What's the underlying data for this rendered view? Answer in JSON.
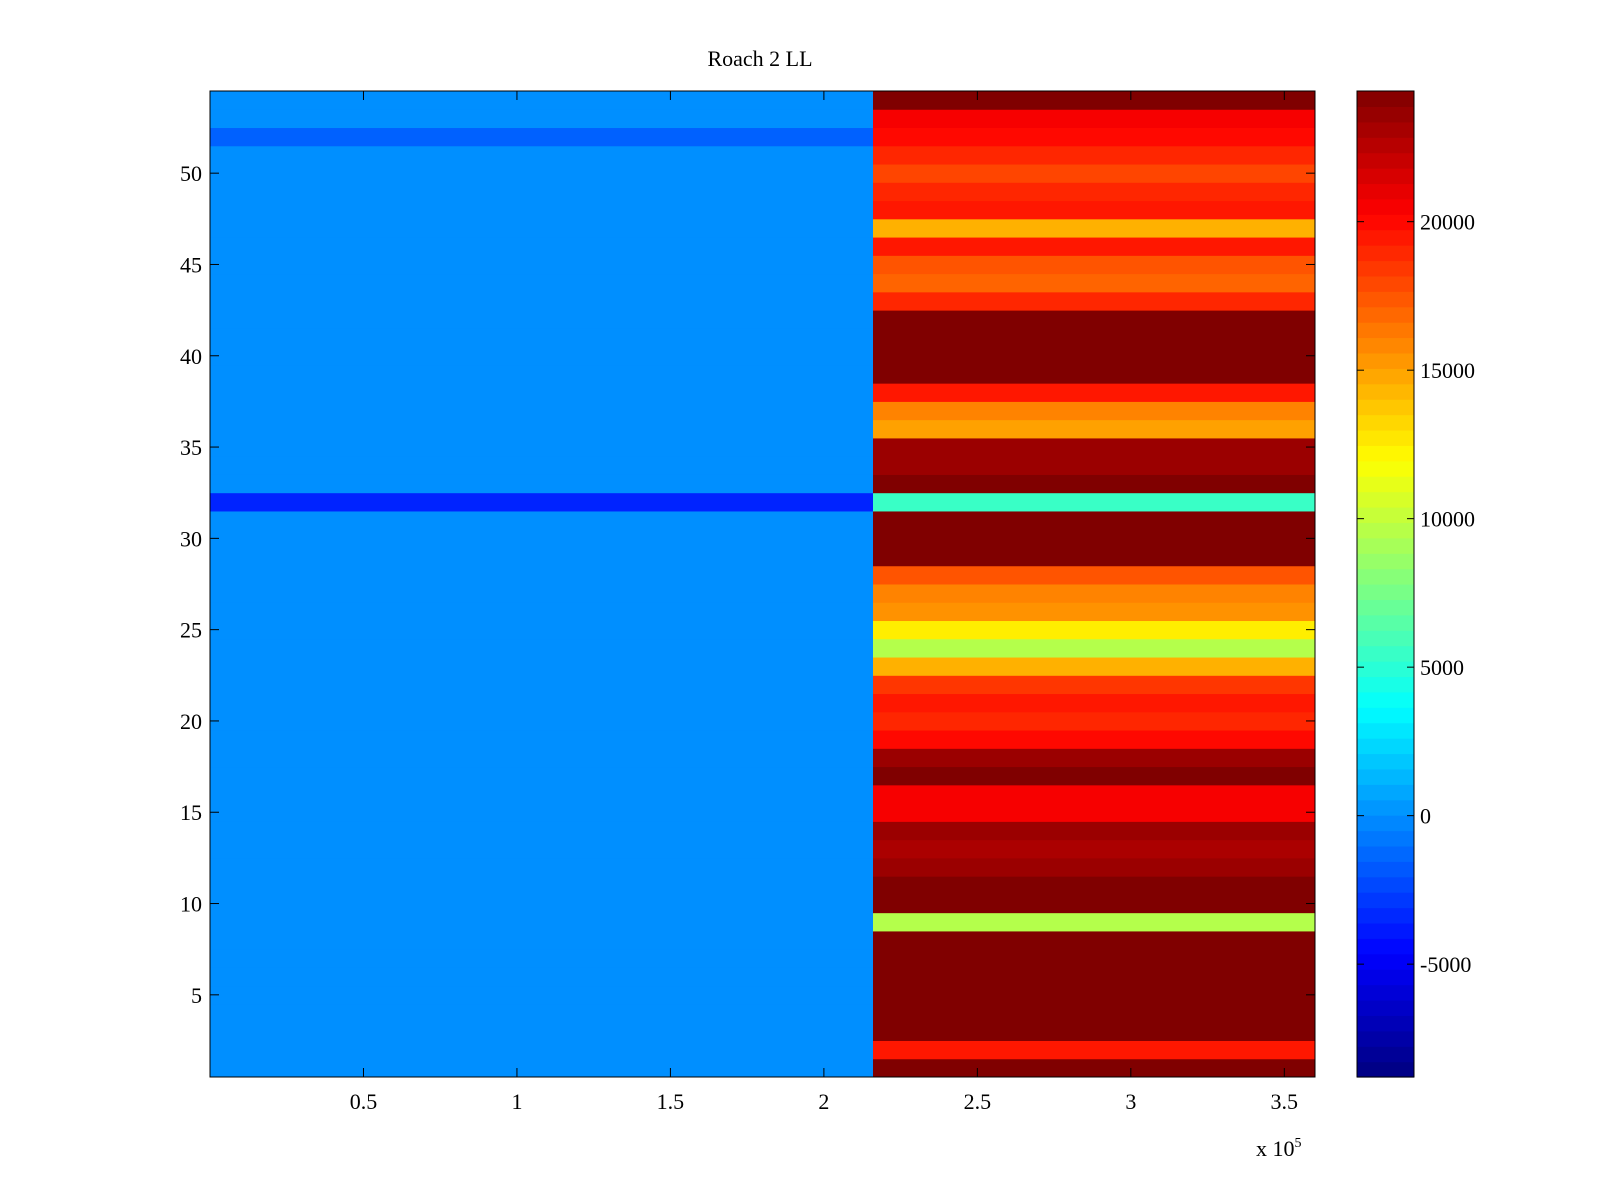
{
  "chart_data": {
    "type": "heatmap",
    "title": "Roach 2 LL",
    "xlabel": "",
    "ylabel": "",
    "xlim": [
      0,
      360000
    ],
    "ylim": [
      0.5,
      54.5
    ],
    "x_ticks": [
      50000,
      100000,
      150000,
      200000,
      250000,
      300000,
      350000
    ],
    "x_tick_labels": [
      "0.5",
      "1",
      "1.5",
      "2",
      "2.5",
      "3",
      "3.5"
    ],
    "x_multiplier_label": {
      "prefix": "x 10",
      "exponent": "5"
    },
    "y_ticks": [
      5,
      10,
      15,
      20,
      25,
      30,
      35,
      40,
      45,
      50
    ],
    "y_tick_labels": [
      "5",
      "10",
      "15",
      "20",
      "25",
      "30",
      "35",
      "40",
      "45",
      "50"
    ],
    "colormap": "jet",
    "clim": [
      -8800,
      24400
    ],
    "colorbar": {
      "ticks": [
        -5000,
        0,
        5000,
        10000,
        15000,
        20000
      ],
      "tick_labels": [
        "-5000",
        "0",
        "5000",
        "10000",
        "15000",
        "20000"
      ],
      "levels": 64
    },
    "regions": [
      {
        "x_range": [
          0,
          216000
        ],
        "description_value": 0
      },
      {
        "x_range": [
          216000,
          360000
        ],
        "row_values_by_channel": true
      }
    ],
    "left_region_value": 0,
    "left_dark_rows": {
      "32": -3500,
      "52": -1500
    },
    "right_row_values": {
      "1": 24400,
      "2": 19500,
      "3": 24400,
      "4": 24400,
      "5": 24400,
      "6": 24400,
      "7": 24400,
      "8": 24400,
      "9": 9500,
      "10": 24400,
      "11": 24400,
      "12": 23500,
      "13": 23000,
      "14": 23500,
      "15": 20500,
      "16": 20500,
      "17": 24400,
      "18": 23500,
      "19": 20000,
      "20": 19000,
      "21": 19500,
      "22": 18500,
      "23": 14500,
      "24": 9500,
      "25": 12500,
      "26": 15500,
      "27": 16000,
      "28": 17500,
      "29": 24400,
      "30": 24400,
      "31": 24400,
      "32": 5500,
      "33": 24400,
      "34": 23500,
      "35": 23500,
      "36": 15000,
      "37": 16000,
      "38": 19500,
      "39": 24400,
      "40": 24400,
      "41": 24400,
      "42": 24400,
      "43": 19000,
      "44": 17000,
      "45": 17500,
      "46": 19500,
      "47": 14500,
      "48": 19500,
      "49": 19000,
      "50": 18000,
      "51": 19000,
      "52": 20000,
      "53": 20500,
      "54": 24400
    },
    "grid": false,
    "legend": "none"
  }
}
